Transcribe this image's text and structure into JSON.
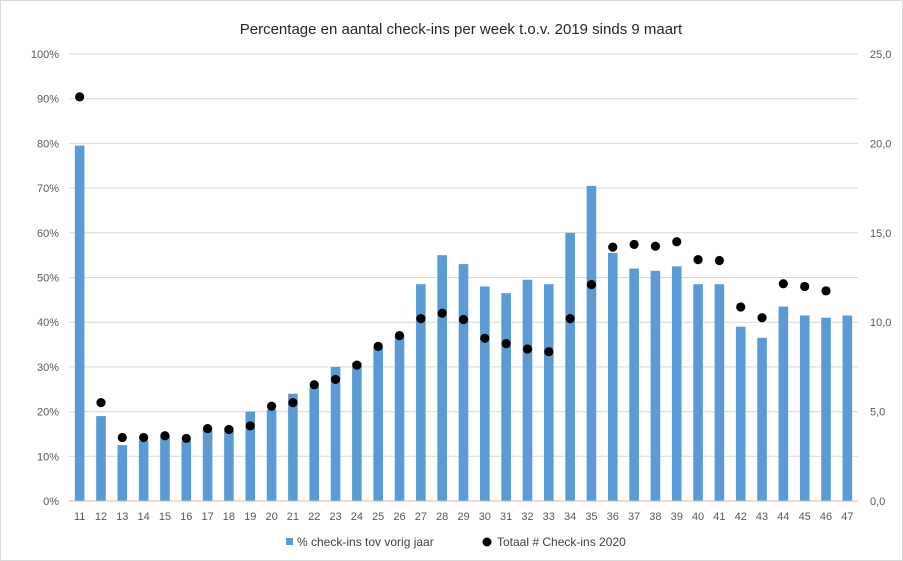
{
  "chart_data": {
    "type": "bar",
    "title": "Percentage en aantal check-ins per week t.o.v. 2019 sinds 9 maart",
    "xlabel": "",
    "ylabel": "",
    "categories": [
      "11",
      "12",
      "13",
      "14",
      "15",
      "16",
      "17",
      "18",
      "19",
      "20",
      "21",
      "22",
      "23",
      "24",
      "25",
      "26",
      "27",
      "28",
      "29",
      "30",
      "31",
      "32",
      "33",
      "34",
      "35",
      "36",
      "37",
      "38",
      "39",
      "40",
      "41",
      "42",
      "43",
      "44",
      "45",
      "46",
      "47"
    ],
    "y_left": {
      "ylim": [
        0,
        100
      ],
      "ticks": [
        "0%",
        "10%",
        "20%",
        "30%",
        "40%",
        "50%",
        "60%",
        "70%",
        "80%",
        "90%",
        "100%"
      ]
    },
    "y_right": {
      "ylim": [
        0,
        25
      ],
      "ticks": [
        "0,0",
        "5,0",
        "10,0",
        "15,0",
        "20,0",
        "25,0"
      ]
    },
    "grid": true,
    "legend_position": "bottom",
    "series": [
      {
        "name": "% check-ins tov vorig jaar",
        "kind": "bar",
        "axis": "left",
        "color": "#5b9bd5",
        "values": [
          79.5,
          19,
          12.5,
          13.5,
          14.5,
          13.5,
          16,
          16.5,
          20,
          20.5,
          24,
          25.5,
          30,
          31,
          34.5,
          37,
          48.5,
          55,
          53,
          48,
          46.5,
          49.5,
          48.5,
          60,
          70.5,
          55.5,
          52,
          51.5,
          52.5,
          48.5,
          48.5,
          39,
          36.5,
          43.5,
          41.5,
          41,
          41.5
        ]
      },
      {
        "name": "Totaal # Check-ins 2020",
        "kind": "scatter",
        "axis": "right",
        "color": "#000000",
        "values": [
          22.6,
          5.5,
          3.55,
          3.55,
          3.65,
          3.5,
          4.05,
          4.0,
          4.2,
          5.3,
          5.5,
          6.5,
          6.8,
          7.6,
          8.65,
          9.25,
          10.2,
          10.5,
          10.15,
          9.1,
          8.8,
          8.5,
          8.35,
          10.2,
          12.1,
          14.2,
          14.35,
          14.25,
          14.5,
          13.5,
          13.45,
          10.85,
          10.25,
          12.15,
          12.0,
          11.75,
          null
        ]
      }
    ]
  }
}
